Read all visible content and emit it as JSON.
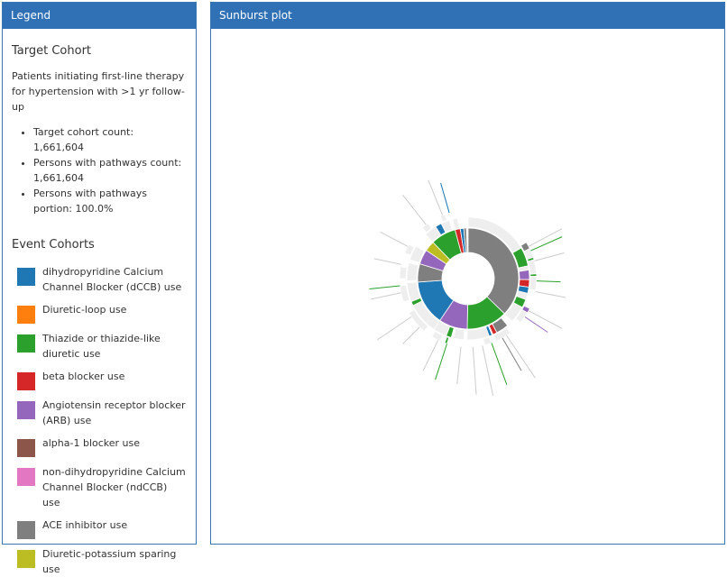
{
  "legend": {
    "header": "Legend",
    "target_title": "Target Cohort",
    "target_description": "Patients initiating first-line therapy for hypertension with >1 yr follow-up",
    "stats": [
      "Target cohort count: 1,661,604",
      "Persons with pathways count: 1,661,604",
      "Persons with pathways portion: 100.0%"
    ],
    "event_title": "Event Cohorts",
    "events": [
      {
        "label": "dihydropyridine Calcium Channel Blocker (dCCB) use",
        "color": "#1f77b4"
      },
      {
        "label": "Diuretic-loop use",
        "color": "#ff7f0e"
      },
      {
        "label": "Thiazide or thiazide-like diuretic use",
        "color": "#2ca02c"
      },
      {
        "label": "beta blocker use",
        "color": "#d62728"
      },
      {
        "label": "Angiotensin receptor blocker (ARB) use",
        "color": "#9467bd"
      },
      {
        "label": "alpha-1 blocker use",
        "color": "#8c564b"
      },
      {
        "label": "non-dihydropyridine Calcium Channel Blocker (ndCCB) use",
        "color": "#e377c2"
      },
      {
        "label": "ACE inhibitor use",
        "color": "#7f7f7f"
      },
      {
        "label": "Diuretic-potassium sparing use",
        "color": "#bcbd22"
      }
    ]
  },
  "plot": {
    "header": "Sunburst plot"
  },
  "sunburst": {
    "empty_color": "#eeeeee",
    "ring1": [
      {
        "cohort": "ACE inhibitor use",
        "start": 0,
        "end": 134,
        "color": "#7f7f7f"
      },
      {
        "cohort": "Thiazide or thiazide-like diuretic use",
        "start": 134,
        "end": 181,
        "color": "#2ca02c"
      },
      {
        "cohort": "Angiotensin receptor blocker (ARB) use",
        "start": 181,
        "end": 214,
        "color": "#9467bd"
      },
      {
        "cohort": "dihydropyridine Calcium Channel Blocker (dCCB) use",
        "start": 214,
        "end": 266,
        "color": "#1f77b4"
      },
      {
        "cohort": "ACE inhibitor use",
        "start": 266,
        "end": 287,
        "color": "#7f7f7f"
      },
      {
        "cohort": "Angiotensin receptor blocker (ARB) use",
        "start": 287,
        "end": 304,
        "color": "#9467bd"
      },
      {
        "cohort": "Diuretic-potassium sparing use",
        "start": 304,
        "end": 316,
        "color": "#bcbd22"
      },
      {
        "cohort": "Thiazide or thiazide-like diuretic use",
        "start": 316,
        "end": 345,
        "color": "#2ca02c"
      },
      {
        "cohort": "beta blocker use",
        "start": 345,
        "end": 351,
        "color": "#d62728"
      },
      {
        "cohort": "dihydropyridine Calcium Channel Blocker (dCCB) use",
        "start": 351,
        "end": 355,
        "color": "#1f77b4"
      },
      {
        "cohort": "ACE inhibitor use",
        "start": 355,
        "end": 358,
        "color": "#7f7f7f"
      }
    ],
    "ring2": [
      {
        "start": 0,
        "end": 60,
        "color": "#eeeeee"
      },
      {
        "start": 60,
        "end": 78,
        "color": "#2ca02c"
      },
      {
        "start": 78,
        "end": 82,
        "color": "#eeeeee"
      },
      {
        "start": 82,
        "end": 91,
        "color": "#9467bd"
      },
      {
        "start": 91,
        "end": 98,
        "color": "#d62728"
      },
      {
        "start": 98,
        "end": 104,
        "color": "#1f77b4"
      },
      {
        "start": 104,
        "end": 110,
        "color": "#eeeeee"
      },
      {
        "start": 110,
        "end": 118,
        "color": "#2ca02c"
      },
      {
        "start": 118,
        "end": 134,
        "color": "#eeeeee"
      },
      {
        "start": 140,
        "end": 152,
        "color": "#7f7f7f"
      },
      {
        "start": 152,
        "end": 156,
        "color": "#d62728"
      },
      {
        "start": 157,
        "end": 160,
        "color": "#1f77b4"
      },
      {
        "start": 160,
        "end": 181,
        "color": "#eeeeee"
      },
      {
        "start": 184,
        "end": 194,
        "color": "#eeeeee"
      },
      {
        "start": 196,
        "end": 201,
        "color": "#2ca02c"
      },
      {
        "start": 201,
        "end": 214,
        "color": "#eeeeee"
      },
      {
        "start": 214,
        "end": 244,
        "color": "#eeeeee"
      },
      {
        "start": 244,
        "end": 248,
        "color": "#2ca02c"
      },
      {
        "start": 248,
        "end": 266,
        "color": "#eeeeee"
      },
      {
        "start": 268,
        "end": 285,
        "color": "#eeeeee"
      },
      {
        "start": 288,
        "end": 302,
        "color": "#eeeeee"
      },
      {
        "start": 316,
        "end": 328,
        "color": "#eeeeee"
      },
      {
        "start": 328,
        "end": 334,
        "color": "#1f77b4"
      },
      {
        "start": 334,
        "end": 342,
        "color": "#eeeeee"
      },
      {
        "start": 345,
        "end": 350,
        "color": "#eeeeee"
      }
    ],
    "ring3": [
      {
        "start": 58,
        "end": 64,
        "color": "#7f7f7f"
      },
      {
        "start": 64,
        "end": 72,
        "color": "#eeeeee"
      },
      {
        "start": 72,
        "end": 74,
        "color": "#2ca02c"
      },
      {
        "start": 74,
        "end": 86,
        "color": "#eeeeee"
      },
      {
        "start": 86,
        "end": 88,
        "color": "#2ca02c"
      },
      {
        "start": 88,
        "end": 100,
        "color": "#eeeeee"
      },
      {
        "start": 116,
        "end": 120,
        "color": "#9467bd"
      },
      {
        "start": 120,
        "end": 130,
        "color": "#eeeeee"
      },
      {
        "start": 142,
        "end": 156,
        "color": "#eeeeee"
      },
      {
        "start": 160,
        "end": 166,
        "color": "#eeeeee"
      },
      {
        "start": 198,
        "end": 200,
        "color": "#2ca02c"
      },
      {
        "start": 204,
        "end": 212,
        "color": "#eeeeee"
      },
      {
        "start": 220,
        "end": 240,
        "color": "#eeeeee"
      },
      {
        "start": 250,
        "end": 264,
        "color": "#eeeeee"
      },
      {
        "start": 270,
        "end": 280,
        "color": "#eeeeee"
      },
      {
        "start": 292,
        "end": 300,
        "color": "#eeeeee"
      },
      {
        "start": 318,
        "end": 324,
        "color": "#eeeeee"
      },
      {
        "start": 336,
        "end": 340,
        "color": "#eeeeee"
      }
    ],
    "spokes": [
      {
        "angle": 62,
        "len": 1.55,
        "color": "#cccccc"
      },
      {
        "angle": 66,
        "len": 1.5,
        "color": "#2ca02c"
      },
      {
        "angle": 75,
        "len": 1.45,
        "color": "#cccccc"
      },
      {
        "angle": 92,
        "len": 1.35,
        "color": "#2ca02c"
      },
      {
        "angle": 101,
        "len": 1.45,
        "color": "#cccccc"
      },
      {
        "angle": 118,
        "len": 1.55,
        "color": "#cccccc"
      },
      {
        "angle": 124,
        "len": 1.4,
        "color": "#9467bd"
      },
      {
        "angle": 146,
        "len": 1.75,
        "color": "#cccccc"
      },
      {
        "angle": 150,
        "len": 1.55,
        "color": "#7f7f7f"
      },
      {
        "angle": 160,
        "len": 1.65,
        "color": "#2ca02c"
      },
      {
        "angle": 168,
        "len": 1.75,
        "color": "#cccccc"
      },
      {
        "angle": 176,
        "len": 1.7,
        "color": "#cccccc"
      },
      {
        "angle": 186,
        "len": 1.55,
        "color": "#cccccc"
      },
      {
        "angle": 198,
        "len": 1.55,
        "color": "#2ca02c"
      },
      {
        "angle": 206,
        "len": 1.5,
        "color": "#cccccc"
      },
      {
        "angle": 225,
        "len": 1.35,
        "color": "#cccccc"
      },
      {
        "angle": 236,
        "len": 1.6,
        "color": "#cccccc"
      },
      {
        "angle": 258,
        "len": 1.45,
        "color": "#cccccc"
      },
      {
        "angle": 264,
        "len": 1.45,
        "color": "#2ca02c"
      },
      {
        "angle": 282,
        "len": 1.4,
        "color": "#cccccc"
      },
      {
        "angle": 298,
        "len": 1.45,
        "color": "#cccccc"
      },
      {
        "angle": 322,
        "len": 1.55,
        "color": "#cccccc"
      },
      {
        "angle": 338,
        "len": 1.55,
        "color": "#cccccc"
      },
      {
        "angle": 344,
        "len": 1.45,
        "color": "#1f77b4"
      }
    ]
  }
}
